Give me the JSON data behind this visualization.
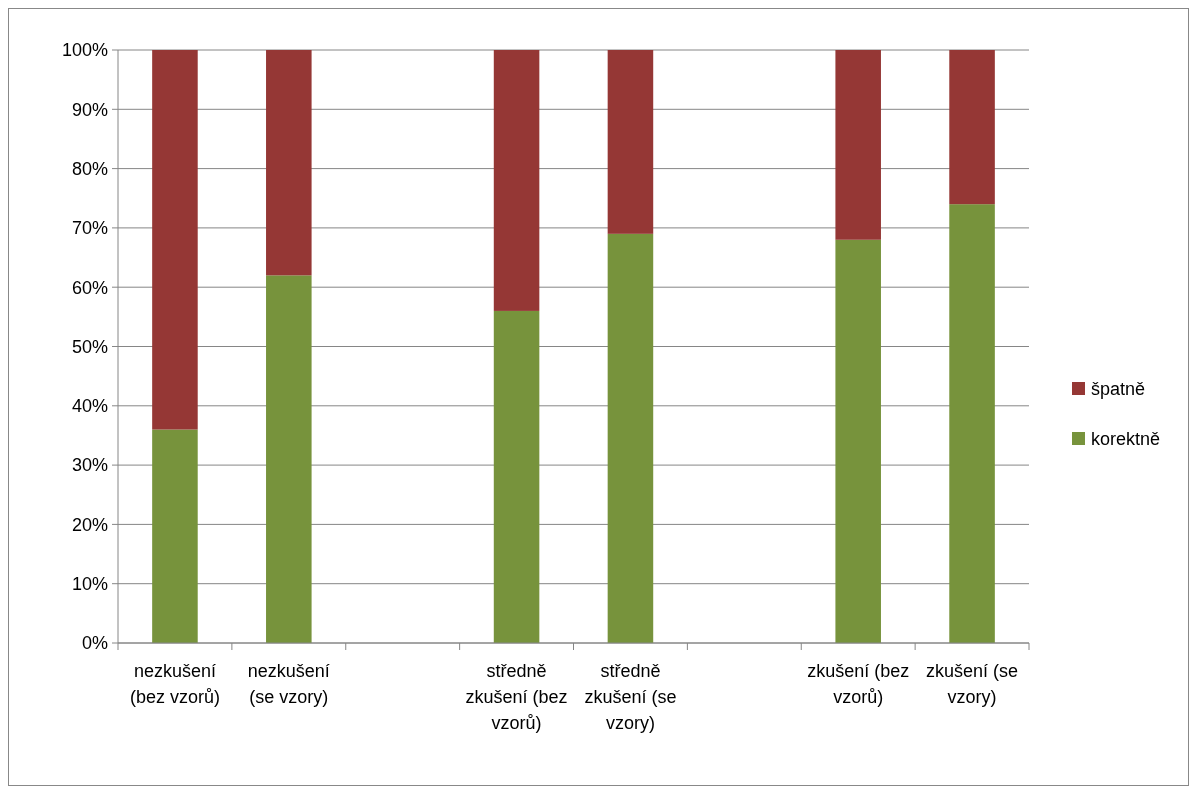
{
  "chart_data": {
    "type": "bar",
    "stacked": true,
    "categories": [
      "nezkušení (bez vzorů)",
      "nezkušení (se vzory)",
      null,
      "středně zkušení (bez vzorů)",
      "středně zkušení (se vzory)",
      null,
      "zkušení (bez vzorů)",
      "zkušení (se vzory)"
    ],
    "series": [
      {
        "name": "korektně",
        "color": "#77933c",
        "values": [
          36,
          62,
          null,
          56,
          69,
          null,
          68,
          74
        ]
      },
      {
        "name": "špatně",
        "color": "#953735",
        "values": [
          64,
          38,
          null,
          44,
          31,
          null,
          32,
          26
        ]
      }
    ],
    "ylim": [
      0,
      100
    ],
    "yticks": [
      {
        "value": 0,
        "label": "0%"
      },
      {
        "value": 10,
        "label": "10%"
      },
      {
        "value": 20,
        "label": "20%"
      },
      {
        "value": 30,
        "label": "30%"
      },
      {
        "value": 40,
        "label": "40%"
      },
      {
        "value": 50,
        "label": "50%"
      },
      {
        "value": 60,
        "label": "60%"
      },
      {
        "value": 70,
        "label": "70%"
      },
      {
        "value": 80,
        "label": "80%"
      },
      {
        "value": 90,
        "label": "90%"
      },
      {
        "value": 100,
        "label": "100%"
      }
    ],
    "grid": "y",
    "legend": "right"
  }
}
